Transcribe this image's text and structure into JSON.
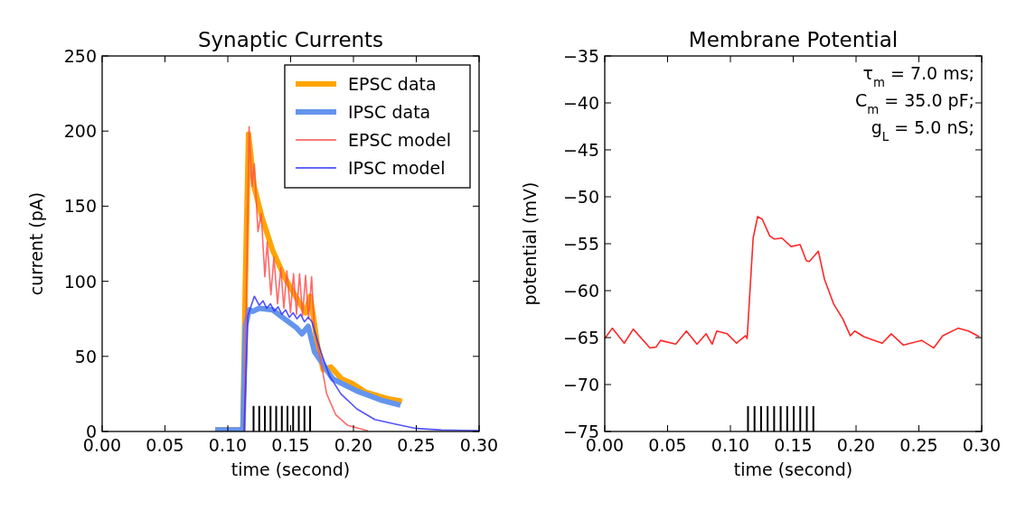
{
  "chart_data": [
    {
      "type": "line",
      "title": "Synaptic Currents",
      "xlabel": "time (second)",
      "ylabel": "current (pA)",
      "xlim": [
        0,
        0.3
      ],
      "xticks": [
        {
          "value": 0,
          "label": "0.00"
        },
        {
          "value": 0.05,
          "label": "0.05"
        },
        {
          "value": 0.1,
          "label": "0.10"
        },
        {
          "value": 0.15,
          "label": "0.15"
        },
        {
          "value": 0.2,
          "label": "0.20"
        },
        {
          "value": 0.25,
          "label": "0.25"
        },
        {
          "value": 0.3,
          "label": "0.30"
        }
      ],
      "ylim": [
        0,
        250
      ],
      "yticks": [
        0,
        50,
        100,
        150,
        200,
        250
      ],
      "grid": false,
      "legend": "top right",
      "series": [
        {
          "name": "EPSC data",
          "color": "#ffa500",
          "x": [
            0.09,
            0.112,
            0.114,
            0.1165,
            0.121,
            0.127,
            0.1355,
            0.145,
            0.1547,
            0.162,
            0.1655,
            0.168,
            0.1714,
            0.176,
            0.182,
            0.1906,
            0.199,
            0.21,
            0.2266,
            0.2386
          ],
          "values": [
            1,
            1,
            100,
            198,
            163,
            143,
            121,
            103,
            89,
            79,
            90,
            77,
            57,
            41,
            43,
            35,
            32,
            26,
            22,
            20
          ]
        },
        {
          "name": "IPSC data",
          "color": "#6495ed",
          "x": [
            0.09,
            0.112,
            0.114,
            0.117,
            0.12,
            0.125,
            0.1355,
            0.145,
            0.1547,
            0.159,
            0.164,
            0.169,
            0.174,
            0.1835,
            0.2027,
            0.2216,
            0.2374
          ],
          "values": [
            1,
            1,
            70,
            81,
            80,
            82,
            81,
            75,
            69,
            65,
            70,
            53,
            47,
            35,
            27,
            21,
            17.5
          ]
        },
        {
          "name": "EPSC model",
          "color": "#ff5050",
          "x": [
            0.113,
            0.117,
            0.1192,
            0.1211,
            0.124,
            0.1266,
            0.1295,
            0.1314,
            0.1343,
            0.1367,
            0.1396,
            0.1422,
            0.1446,
            0.147,
            0.1499,
            0.1523,
            0.1547,
            0.1571,
            0.1595,
            0.1619,
            0.1643,
            0.1667,
            0.169,
            0.174,
            0.1787,
            0.186,
            0.1955,
            0.2115
          ],
          "values": [
            0,
            203,
            163,
            178,
            133,
            145,
            103,
            126,
            91,
            116,
            85,
            109,
            82,
            107,
            79,
            105,
            78,
            105,
            77,
            104,
            75,
            103,
            67,
            47,
            25,
            11,
            4,
            0.5
          ]
        },
        {
          "name": "IPSC model",
          "color": "#3333ff",
          "x": [
            0.113,
            0.116,
            0.1211,
            0.125,
            0.128,
            0.131,
            0.134,
            0.137,
            0.14,
            0.143,
            0.146,
            0.149,
            0.152,
            0.155,
            0.158,
            0.161,
            0.164,
            0.167,
            0.174,
            0.181,
            0.19,
            0.2027,
            0.217,
            0.233,
            0.25,
            0.27,
            0.3
          ],
          "values": [
            0,
            77,
            90,
            84,
            87,
            82,
            85,
            80,
            83,
            78,
            81,
            76,
            79,
            75,
            78,
            73,
            76,
            73,
            53,
            37,
            25,
            15,
            8,
            5,
            2,
            1,
            0.5
          ]
        },
        {
          "type": "bar",
          "color": "#000000",
          "x": [
            0.1205,
            0.125,
            0.1295,
            0.134,
            0.1385,
            0.143,
            0.1475,
            0.152,
            0.1565,
            0.161,
            0.1655
          ],
          "values": [
            17,
            17,
            17,
            17,
            17,
            17,
            17,
            17,
            17,
            17,
            17
          ]
        }
      ]
    },
    {
      "type": "line",
      "title": "Membrane Potential",
      "xlabel": "time (second)",
      "ylabel": "potential (mV)",
      "xlim": [
        0,
        0.3
      ],
      "xticks": [
        {
          "value": 0,
          "label": "0.00"
        },
        {
          "value": 0.05,
          "label": "0.05"
        },
        {
          "value": 0.1,
          "label": "0.10"
        },
        {
          "value": 0.15,
          "label": "0.15"
        },
        {
          "value": 0.2,
          "label": "0.20"
        },
        {
          "value": 0.25,
          "label": "0.25"
        },
        {
          "value": 0.3,
          "label": "0.30"
        }
      ],
      "ylim": [
        -75,
        -35
      ],
      "yticks": [
        -75,
        -70,
        -65,
        -60,
        -55,
        -50,
        -45,
        -40,
        -35
      ],
      "grid": false,
      "annotations": [
        "τ$_{m}$ = 7.0 ms;",
        "C$_{m}$ = 35.0 pF;",
        "g$_{L}$ = 5.0 nS;"
      ],
      "series": [
        {
          "color": "#ff0000",
          "x": [
            0,
            0.006,
            0.0155,
            0.0227,
            0.036,
            0.041,
            0.0444,
            0.0565,
            0.065,
            0.0734,
            0.0807,
            0.0855,
            0.0891,
            0.0976,
            0.1049,
            0.1121,
            0.1133,
            0.1181,
            0.1217,
            0.1254,
            0.1314,
            0.135,
            0.141,
            0.1483,
            0.1555,
            0.1604,
            0.1628,
            0.17,
            0.1749,
            0.1821,
            0.1894,
            0.1954,
            0.199,
            0.2063,
            0.2208,
            0.228,
            0.2377,
            0.2522,
            0.2618,
            0.269,
            0.2812,
            0.2896,
            0.298
          ],
          "values": [
            -65.1,
            -64.0,
            -65.6,
            -64.1,
            -66.1,
            -66.0,
            -65.3,
            -65.7,
            -64.3,
            -65.7,
            -64.6,
            -65.7,
            -64.3,
            -64.6,
            -65.6,
            -64.8,
            -65.1,
            -54.4,
            -52.1,
            -52.4,
            -54.2,
            -54.5,
            -54.4,
            -55.3,
            -55.1,
            -56.8,
            -56.9,
            -55.8,
            -58.8,
            -61.4,
            -63.0,
            -64.8,
            -64.3,
            -64.9,
            -65.6,
            -64.6,
            -65.8,
            -65.3,
            -66.1,
            -64.8,
            -64.0,
            -64.3,
            -64.9
          ]
        },
        {
          "type": "bar",
          "color": "#000000",
          "x": [
            0.114,
            0.1192,
            0.1244,
            0.1296,
            0.1348,
            0.14,
            0.1452,
            0.1504,
            0.1556,
            0.1608,
            0.166
          ],
          "base": [
            -75,
            -75,
            -75,
            -75,
            -75,
            -75,
            -75,
            -75,
            -75,
            -75,
            -75
          ],
          "values": [
            2.7,
            2.7,
            2.7,
            2.7,
            2.7,
            2.7,
            2.7,
            2.7,
            2.7,
            2.7,
            2.7
          ]
        }
      ]
    }
  ]
}
